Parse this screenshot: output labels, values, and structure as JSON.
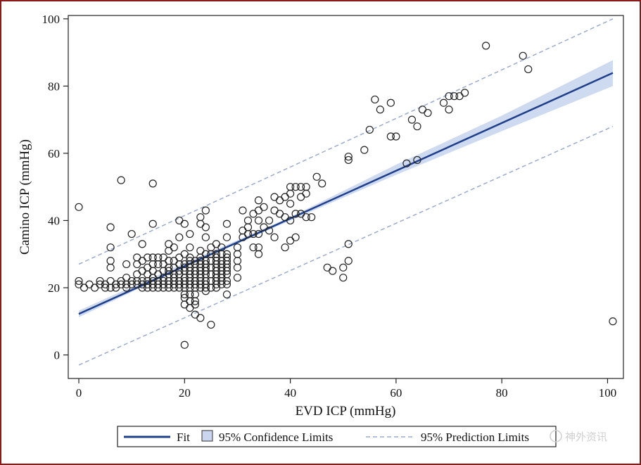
{
  "chart_data": {
    "type": "scatter",
    "xlabel": "EVD ICP (mmHg)",
    "ylabel": "Camino ICP (mmHg)",
    "xlim": [
      -2,
      103
    ],
    "ylim": [
      -7,
      101
    ],
    "xticks": [
      0,
      20,
      40,
      60,
      80,
      100
    ],
    "yticks": [
      0,
      20,
      40,
      60,
      80,
      100
    ],
    "fit": {
      "intercept": 12.2,
      "slope": 0.71
    },
    "confidence_band": [
      {
        "x": 0,
        "lo": 11.2,
        "hi": 13.2
      },
      {
        "x": 20,
        "lo": 26.3,
        "hi": 27.3
      },
      {
        "x": 40,
        "lo": 40.0,
        "hi": 41.0
      },
      {
        "x": 60,
        "lo": 53.6,
        "hi": 56.6
      },
      {
        "x": 80,
        "lo": 66.6,
        "hi": 71.2
      },
      {
        "x": 101,
        "lo": 80.0,
        "hi": 87.7
      }
    ],
    "prediction_limits": {
      "upper": [
        {
          "x": 0,
          "y": 27
        },
        {
          "x": 101,
          "y": 100
        }
      ],
      "lower": [
        {
          "x": 0,
          "y": -3
        },
        {
          "x": 101,
          "y": 68
        }
      ]
    },
    "points": [
      [
        0,
        44
      ],
      [
        0,
        22
      ],
      [
        0,
        21
      ],
      [
        1,
        20
      ],
      [
        2,
        21
      ],
      [
        3,
        20
      ],
      [
        4,
        22
      ],
      [
        4,
        21
      ],
      [
        5,
        21
      ],
      [
        5,
        20
      ],
      [
        6,
        38
      ],
      [
        6,
        32
      ],
      [
        6,
        28
      ],
      [
        6,
        26
      ],
      [
        6,
        22
      ],
      [
        6,
        20
      ],
      [
        7,
        21
      ],
      [
        7,
        20
      ],
      [
        8,
        52
      ],
      [
        8,
        22
      ],
      [
        8,
        21
      ],
      [
        9,
        27
      ],
      [
        9,
        23
      ],
      [
        9,
        21
      ],
      [
        9,
        20
      ],
      [
        10,
        36
      ],
      [
        10,
        22
      ],
      [
        10,
        21
      ],
      [
        11,
        29
      ],
      [
        11,
        27
      ],
      [
        11,
        24
      ],
      [
        11,
        22
      ],
      [
        11,
        21
      ],
      [
        12,
        33
      ],
      [
        12,
        28
      ],
      [
        12,
        25
      ],
      [
        12,
        22
      ],
      [
        12,
        21
      ],
      [
        12,
        20
      ],
      [
        13,
        29
      ],
      [
        13,
        26
      ],
      [
        13,
        24
      ],
      [
        13,
        22
      ],
      [
        13,
        21
      ],
      [
        13,
        20
      ],
      [
        14,
        51
      ],
      [
        14,
        39
      ],
      [
        14,
        29
      ],
      [
        14,
        27
      ],
      [
        14,
        25
      ],
      [
        14,
        23
      ],
      [
        14,
        22
      ],
      [
        14,
        21
      ],
      [
        14,
        20
      ],
      [
        15,
        29
      ],
      [
        15,
        27
      ],
      [
        15,
        24
      ],
      [
        15,
        22
      ],
      [
        15,
        21
      ],
      [
        15,
        20
      ],
      [
        16,
        29
      ],
      [
        16,
        27
      ],
      [
        16,
        25
      ],
      [
        16,
        23
      ],
      [
        16,
        22
      ],
      [
        16,
        21
      ],
      [
        16,
        20
      ],
      [
        17,
        33
      ],
      [
        17,
        31
      ],
      [
        17,
        28
      ],
      [
        17,
        26
      ],
      [
        17,
        25
      ],
      [
        17,
        24
      ],
      [
        17,
        22
      ],
      [
        17,
        21
      ],
      [
        17,
        20
      ],
      [
        18,
        32
      ],
      [
        18,
        28
      ],
      [
        18,
        26
      ],
      [
        18,
        24
      ],
      [
        18,
        23
      ],
      [
        18,
        22
      ],
      [
        18,
        21
      ],
      [
        18,
        20
      ],
      [
        19,
        40
      ],
      [
        19,
        35
      ],
      [
        19,
        29
      ],
      [
        19,
        27
      ],
      [
        19,
        25
      ],
      [
        19,
        24
      ],
      [
        19,
        22
      ],
      [
        19,
        21
      ],
      [
        19,
        20
      ],
      [
        20,
        39
      ],
      [
        20,
        30
      ],
      [
        20,
        27
      ],
      [
        20,
        26
      ],
      [
        20,
        25
      ],
      [
        20,
        23
      ],
      [
        20,
        22
      ],
      [
        20,
        21
      ],
      [
        20,
        20
      ],
      [
        20,
        18
      ],
      [
        20,
        17
      ],
      [
        20,
        15
      ],
      [
        20,
        3
      ],
      [
        21,
        36
      ],
      [
        21,
        32
      ],
      [
        21,
        29
      ],
      [
        21,
        28
      ],
      [
        21,
        27
      ],
      [
        21,
        26
      ],
      [
        21,
        25
      ],
      [
        21,
        24
      ],
      [
        21,
        23
      ],
      [
        21,
        22
      ],
      [
        21,
        21
      ],
      [
        21,
        20
      ],
      [
        21,
        18
      ],
      [
        21,
        16
      ],
      [
        21,
        14
      ],
      [
        22,
        28
      ],
      [
        22,
        27
      ],
      [
        22,
        25
      ],
      [
        22,
        24
      ],
      [
        22,
        22
      ],
      [
        22,
        21
      ],
      [
        22,
        20
      ],
      [
        22,
        18
      ],
      [
        22,
        16
      ],
      [
        22,
        15
      ],
      [
        22,
        12
      ],
      [
        23,
        41
      ],
      [
        23,
        39
      ],
      [
        23,
        31
      ],
      [
        23,
        29
      ],
      [
        23,
        28
      ],
      [
        23,
        27
      ],
      [
        23,
        26
      ],
      [
        23,
        25
      ],
      [
        23,
        24
      ],
      [
        23,
        23
      ],
      [
        23,
        22
      ],
      [
        23,
        21
      ],
      [
        23,
        20
      ],
      [
        23,
        11
      ],
      [
        24,
        43
      ],
      [
        24,
        38
      ],
      [
        24,
        35
      ],
      [
        24,
        30
      ],
      [
        24,
        28
      ],
      [
        24,
        27
      ],
      [
        24,
        26
      ],
      [
        24,
        25
      ],
      [
        24,
        24
      ],
      [
        24,
        22
      ],
      [
        24,
        21
      ],
      [
        24,
        20
      ],
      [
        24,
        19
      ],
      [
        25,
        32
      ],
      [
        25,
        30
      ],
      [
        25,
        28
      ],
      [
        25,
        26
      ],
      [
        25,
        24
      ],
      [
        25,
        22
      ],
      [
        25,
        20
      ],
      [
        25,
        9
      ],
      [
        26,
        33
      ],
      [
        26,
        30
      ],
      [
        26,
        29
      ],
      [
        26,
        28
      ],
      [
        26,
        27
      ],
      [
        26,
        26
      ],
      [
        26,
        25
      ],
      [
        26,
        24
      ],
      [
        26,
        23
      ],
      [
        26,
        22
      ],
      [
        26,
        21
      ],
      [
        26,
        20
      ],
      [
        27,
        32
      ],
      [
        27,
        30
      ],
      [
        27,
        28
      ],
      [
        27,
        27
      ],
      [
        27,
        26
      ],
      [
        27,
        25
      ],
      [
        27,
        24
      ],
      [
        27,
        23
      ],
      [
        27,
        22
      ],
      [
        27,
        21
      ],
      [
        28,
        39
      ],
      [
        28,
        35
      ],
      [
        28,
        30
      ],
      [
        28,
        29
      ],
      [
        28,
        28
      ],
      [
        28,
        27
      ],
      [
        28,
        26
      ],
      [
        28,
        25
      ],
      [
        28,
        24
      ],
      [
        28,
        22
      ],
      [
        28,
        21
      ],
      [
        28,
        18
      ],
      [
        30,
        32
      ],
      [
        30,
        30
      ],
      [
        30,
        28
      ],
      [
        30,
        26
      ],
      [
        30,
        23
      ],
      [
        31,
        43
      ],
      [
        31,
        37
      ],
      [
        31,
        35
      ],
      [
        32,
        40
      ],
      [
        32,
        38
      ],
      [
        32,
        36
      ],
      [
        33,
        42
      ],
      [
        33,
        36
      ],
      [
        33,
        32
      ],
      [
        34,
        46
      ],
      [
        34,
        43
      ],
      [
        34,
        40
      ],
      [
        34,
        36
      ],
      [
        34,
        32
      ],
      [
        34,
        30
      ],
      [
        35,
        44
      ],
      [
        35,
        38
      ],
      [
        36,
        40
      ],
      [
        36,
        37
      ],
      [
        37,
        47
      ],
      [
        37,
        43
      ],
      [
        37,
        35
      ],
      [
        38,
        46
      ],
      [
        38,
        42
      ],
      [
        39,
        47
      ],
      [
        39,
        41
      ],
      [
        39,
        32
      ],
      [
        40,
        50
      ],
      [
        40,
        48
      ],
      [
        40,
        45
      ],
      [
        40,
        40
      ],
      [
        40,
        34
      ],
      [
        41,
        50
      ],
      [
        41,
        42
      ],
      [
        41,
        35
      ],
      [
        42,
        50
      ],
      [
        42,
        47
      ],
      [
        42,
        42
      ],
      [
        43,
        50
      ],
      [
        43,
        48
      ],
      [
        43,
        41
      ],
      [
        44,
        41
      ],
      [
        45,
        53
      ],
      [
        46,
        51
      ],
      [
        47,
        26
      ],
      [
        48,
        25
      ],
      [
        50,
        26
      ],
      [
        50,
        23
      ],
      [
        51,
        59
      ],
      [
        51,
        58
      ],
      [
        51,
        33
      ],
      [
        51,
        28
      ],
      [
        54,
        61
      ],
      [
        55,
        67
      ],
      [
        56,
        76
      ],
      [
        57,
        73
      ],
      [
        59,
        75
      ],
      [
        59,
        65
      ],
      [
        60,
        65
      ],
      [
        62,
        57
      ],
      [
        63,
        70
      ],
      [
        64,
        68
      ],
      [
        64,
        58
      ],
      [
        65,
        73
      ],
      [
        66,
        72
      ],
      [
        69,
        75
      ],
      [
        70,
        77
      ],
      [
        70,
        73
      ],
      [
        71,
        77
      ],
      [
        72,
        77
      ],
      [
        73,
        78
      ],
      [
        77,
        92
      ],
      [
        84,
        89
      ],
      [
        85,
        85
      ],
      [
        101,
        10
      ]
    ]
  },
  "legend": {
    "fit_label": "Fit",
    "confidence_label": "95% Confidence Limits",
    "prediction_label": "95% Prediction Limits"
  },
  "watermark": {
    "text": "神外资讯"
  },
  "colors": {
    "fit_line": "#1f3f8a",
    "confidence_fill": "#c9d6ee",
    "prediction_line": "#9aabd0",
    "point_stroke": "#222222",
    "frame_border": "#8b1a1a"
  }
}
